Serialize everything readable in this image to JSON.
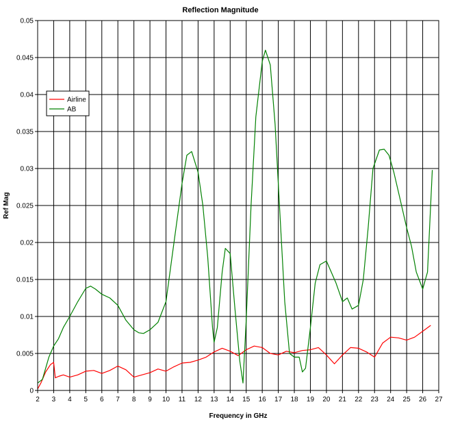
{
  "chart_data": {
    "type": "line",
    "title": "Reflection Magnitude",
    "xlabel": "Frequency in GHz",
    "ylabel": "Ref Mag",
    "xlim": [
      2,
      27
    ],
    "ylim": [
      0,
      0.05
    ],
    "x_ticks": [
      "2",
      "3",
      "4",
      "5",
      "6",
      "7",
      "8",
      "9",
      "10",
      "11",
      "12",
      "13",
      "14",
      "15",
      "16",
      "17",
      "18",
      "19",
      "20",
      "21",
      "22",
      "23",
      "24",
      "25",
      "26",
      "27"
    ],
    "y_ticks": [
      "0",
      "0.005",
      "0.01",
      "0.015",
      "0.02",
      "0.025",
      "0.03",
      "0.035",
      "0.04",
      "0.045",
      "0.05"
    ],
    "grid": true,
    "legend": "top-left",
    "series": [
      {
        "name": "Airline",
        "color": "#ff0000",
        "x": [
          2.0,
          2.2,
          2.5,
          2.8,
          3.0,
          3.1,
          3.3,
          3.6,
          4.0,
          4.5,
          5.0,
          5.5,
          6.0,
          6.5,
          7.0,
          7.5,
          8.0,
          8.5,
          9.0,
          9.5,
          10.0,
          10.5,
          11.0,
          11.5,
          12.0,
          12.5,
          13.0,
          13.5,
          14.0,
          14.5,
          15.0,
          15.5,
          16.0,
          16.5,
          17.0,
          17.5,
          18.0,
          18.5,
          19.0,
          19.5,
          20.0,
          20.5,
          21.0,
          21.5,
          22.0,
          22.5,
          23.0,
          23.5,
          24.0,
          24.5,
          25.0,
          25.5,
          26.0,
          26.5
        ],
        "y": [
          0.0002,
          0.001,
          0.0025,
          0.0035,
          0.0038,
          0.0017,
          0.0019,
          0.0021,
          0.0018,
          0.0021,
          0.0026,
          0.0027,
          0.0023,
          0.0027,
          0.0033,
          0.0028,
          0.0018,
          0.0021,
          0.0024,
          0.0029,
          0.0026,
          0.0032,
          0.0037,
          0.0038,
          0.0041,
          0.0045,
          0.0052,
          0.0057,
          0.0053,
          0.0047,
          0.0055,
          0.006,
          0.0058,
          0.005,
          0.0048,
          0.0053,
          0.0051,
          0.0054,
          0.0055,
          0.0058,
          0.0048,
          0.0036,
          0.0048,
          0.0058,
          0.0057,
          0.0052,
          0.0045,
          0.0064,
          0.0072,
          0.0071,
          0.0068,
          0.0072,
          0.008,
          0.0088
        ]
      },
      {
        "name": "AB",
        "color": "#008000",
        "x": [
          2.0,
          2.3,
          2.7,
          3.0,
          3.3,
          3.6,
          4.0,
          4.5,
          5.0,
          5.3,
          5.6,
          6.0,
          6.5,
          7.0,
          7.5,
          8.0,
          8.3,
          8.6,
          9.0,
          9.5,
          10.0,
          10.5,
          11.0,
          11.3,
          11.6,
          12.0,
          12.3,
          12.6,
          12.9,
          13.0,
          13.2,
          13.5,
          13.7,
          14.0,
          14.3,
          14.6,
          14.8,
          15.0,
          15.3,
          15.6,
          16.0,
          16.2,
          16.5,
          16.8,
          17.1,
          17.4,
          17.7,
          18.0,
          18.3,
          18.5,
          18.7,
          19.0,
          19.3,
          19.6,
          20.0,
          20.3,
          20.6,
          21.0,
          21.3,
          21.6,
          22.0,
          22.3,
          22.6,
          22.9,
          23.3,
          23.6,
          23.9,
          24.2,
          24.6,
          25.0,
          25.3,
          25.6,
          26.0,
          26.3,
          26.6
        ],
        "y": [
          0.001,
          0.0015,
          0.0045,
          0.006,
          0.007,
          0.0085,
          0.01,
          0.012,
          0.0138,
          0.0141,
          0.0137,
          0.013,
          0.0125,
          0.0115,
          0.0095,
          0.0082,
          0.0078,
          0.0077,
          0.0082,
          0.0092,
          0.012,
          0.02,
          0.028,
          0.0318,
          0.0323,
          0.0295,
          0.025,
          0.018,
          0.0085,
          0.0065,
          0.0085,
          0.016,
          0.0192,
          0.0185,
          0.011,
          0.004,
          0.001,
          0.0095,
          0.025,
          0.037,
          0.0445,
          0.046,
          0.044,
          0.036,
          0.024,
          0.012,
          0.005,
          0.0045,
          0.0045,
          0.0025,
          0.003,
          0.0085,
          0.0145,
          0.017,
          0.0175,
          0.016,
          0.0145,
          0.012,
          0.0125,
          0.011,
          0.0115,
          0.015,
          0.022,
          0.03,
          0.0325,
          0.0326,
          0.0318,
          0.0295,
          0.0258,
          0.022,
          0.0195,
          0.016,
          0.0137,
          0.016,
          0.0298
        ]
      }
    ]
  }
}
